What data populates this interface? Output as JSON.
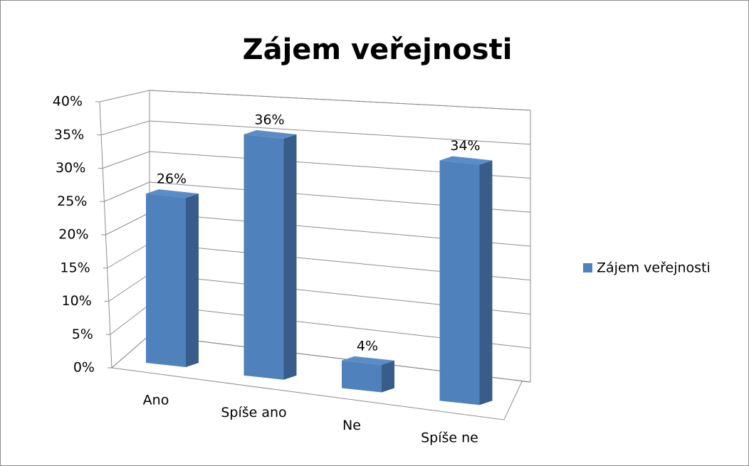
{
  "chart_data": {
    "type": "bar3d",
    "title": "Zájem veřejnosti",
    "categories": [
      "Ano",
      "Spíše ano",
      "Ne",
      "Spíše ne"
    ],
    "series": [
      {
        "name": "Zájem veřejnosti",
        "color": "#4f81bd",
        "values": [
          26,
          36,
          4,
          34
        ],
        "value_labels": [
          "26%",
          "36%",
          "4%",
          "34%"
        ]
      }
    ],
    "ylim": [
      0,
      40
    ],
    "yticks": [
      {
        "value": 0,
        "label": "0%"
      },
      {
        "value": 5,
        "label": "5%"
      },
      {
        "value": 10,
        "label": "10%"
      },
      {
        "value": 15,
        "label": "15%"
      },
      {
        "value": 20,
        "label": "20%"
      },
      {
        "value": 25,
        "label": "25%"
      },
      {
        "value": 30,
        "label": "30%"
      },
      {
        "value": 35,
        "label": "35%"
      },
      {
        "value": 40,
        "label": "40%"
      }
    ],
    "grid": true,
    "legend": "right"
  }
}
